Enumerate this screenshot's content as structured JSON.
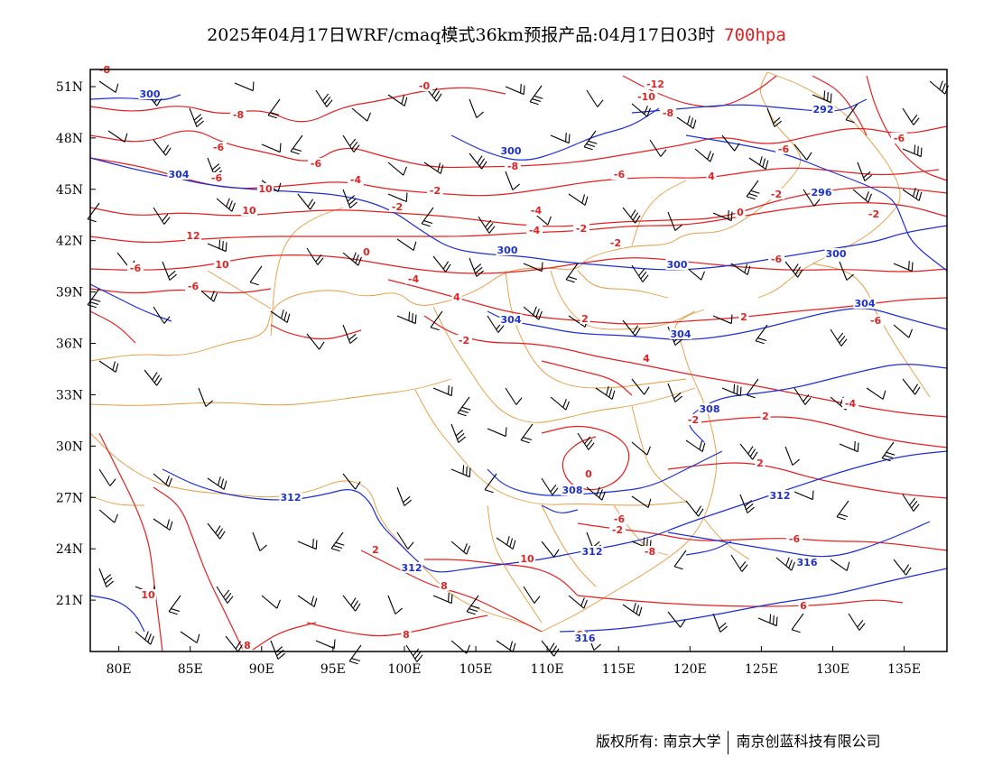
{
  "title": {
    "main": "2025年04月17日WRF/cmaq模式36km预报产品:04月17日03时",
    "level": "700hpa"
  },
  "colors": {
    "temperature": "#e52020",
    "height": "#1c2fd8",
    "border": "#e69a3c",
    "wind": "#000000"
  },
  "map": {
    "lon_range": [
      78,
      138
    ],
    "lat_range": [
      18,
      52
    ],
    "x_ticks": [
      "80E",
      "85E",
      "90E",
      "95E",
      "100E",
      "105E",
      "110E",
      "115E",
      "120E",
      "125E",
      "130E",
      "135E"
    ],
    "y_ticks": [
      "51N",
      "48N",
      "45N",
      "42N",
      "39N",
      "36N",
      "33N",
      "30N",
      "27N",
      "24N",
      "21N"
    ],
    "height_contour_labels": [
      "300",
      "300",
      "304",
      "300",
      "300",
      "292",
      "296",
      "300",
      "304",
      "304",
      "304",
      "308",
      "308",
      "312",
      "312",
      "312",
      "312",
      "316",
      "316"
    ],
    "temperature_contour_labels": [
      "-8",
      "-12",
      "-10",
      "-8",
      "-8",
      "-6",
      "-6",
      "-8",
      "-6",
      "-6",
      "-6",
      "-4",
      "-4",
      "-2",
      "-2",
      "-4",
      "-2",
      "0",
      "0",
      "-2",
      "-2",
      "4",
      "-4",
      "-6",
      "-6",
      "-6",
      "-6",
      "-2",
      "-4",
      "2",
      "2",
      "2",
      "2",
      "4",
      "4",
      "-2",
      "-2",
      "-8",
      "-6",
      "6",
      "8",
      "8",
      "6",
      "8",
      "10",
      "10",
      "10",
      "10",
      "12",
      "10",
      "-6",
      "-0",
      "-2",
      "0",
      "-6",
      "2"
    ]
  },
  "footer": {
    "left": "版权所有: 南京大学",
    "right": "南京创蓝科技有限公司"
  }
}
